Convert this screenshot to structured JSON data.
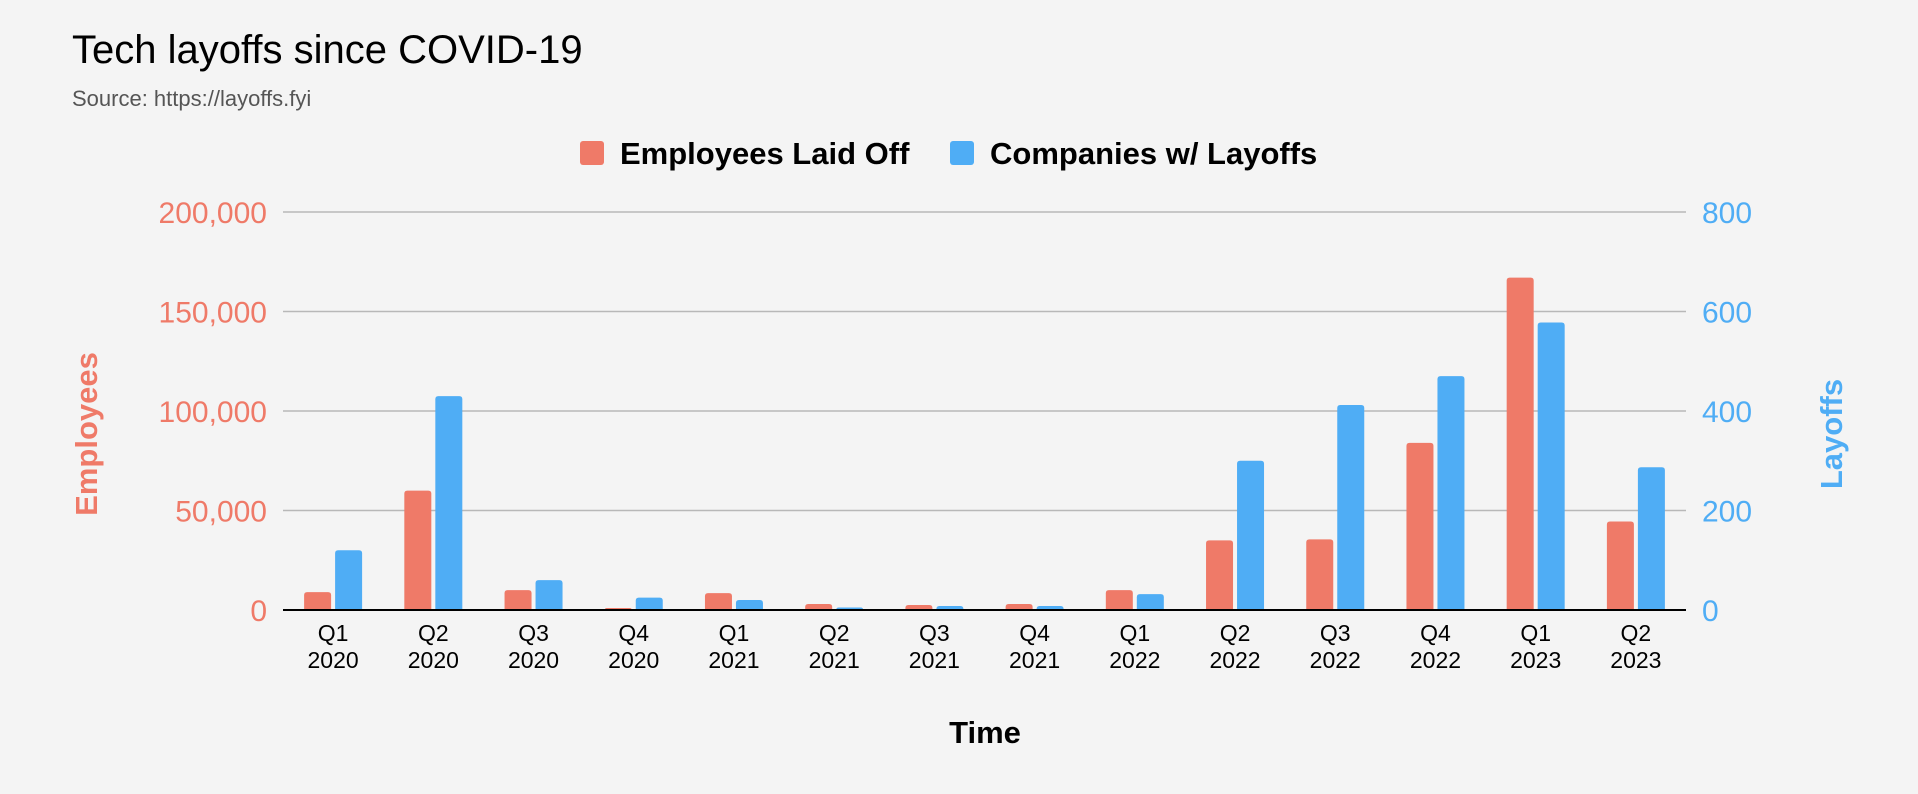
{
  "chart_data": {
    "type": "bar",
    "title": "Tech layoffs since COVID-19",
    "subtitle": "Source: https://layoffs.fyi",
    "xlabel": "Time",
    "ylabel": "Employees",
    "y2label": "Layoffs",
    "categories": [
      [
        "Q1",
        "2020"
      ],
      [
        "Q2",
        "2020"
      ],
      [
        "Q3",
        "2020"
      ],
      [
        "Q4",
        "2020"
      ],
      [
        "Q1",
        "2021"
      ],
      [
        "Q2",
        "2021"
      ],
      [
        "Q3",
        "2021"
      ],
      [
        "Q4",
        "2021"
      ],
      [
        "Q1",
        "2022"
      ],
      [
        "Q2",
        "2022"
      ],
      [
        "Q3",
        "2022"
      ],
      [
        "Q4",
        "2022"
      ],
      [
        "Q1",
        "2023"
      ],
      [
        "Q2",
        "2023"
      ]
    ],
    "series": [
      {
        "name": "Employees Laid Off",
        "axis": "left",
        "color": "#ef7a68",
        "values": [
          9000,
          60000,
          10000,
          1000,
          8500,
          3000,
          2500,
          3000,
          10000,
          35000,
          35500,
          84000,
          167000,
          44500
        ]
      },
      {
        "name": "Companies w/ Layoffs",
        "axis": "right",
        "color": "#4fadf5",
        "values": [
          120,
          430,
          60,
          25,
          20,
          5,
          8,
          8,
          32,
          300,
          412,
          470,
          578,
          287
        ]
      }
    ],
    "ylim": [
      0,
      200000
    ],
    "yticks": [
      0,
      50000,
      100000,
      150000,
      200000
    ],
    "ytick_labels": [
      "0",
      "50,000",
      "100,000",
      "150,000",
      "200,000"
    ],
    "y2lim": [
      0,
      800
    ],
    "y2ticks": [
      0,
      200,
      400,
      600,
      800
    ],
    "y2tick_labels": [
      "0",
      "200",
      "400",
      "600",
      "800"
    ],
    "grid": true,
    "legend": "top-center",
    "colors": {
      "left_axis": "#ef7a68",
      "right_axis": "#4fadf5",
      "gridline": "#b8b8b8",
      "baseline": "#000000"
    }
  }
}
